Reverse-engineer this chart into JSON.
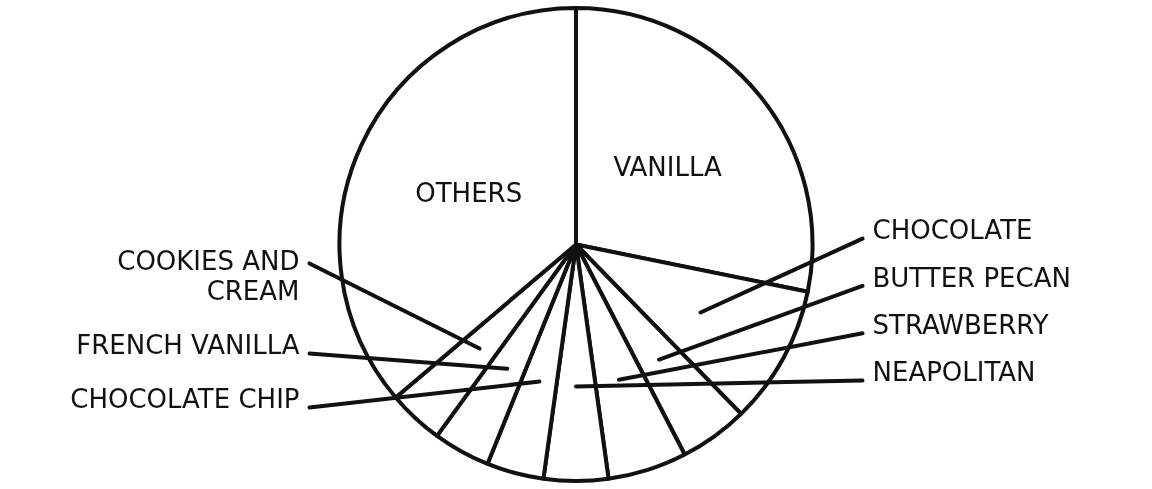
{
  "chart_data": {
    "type": "pie",
    "categories": [
      "VANILLA",
      "CHOCOLATE",
      "BUTTER PECAN",
      "STRAWBERRY",
      "NEAPOLITAN",
      "CHOCOLATE CHIP",
      "FRENCH VANILLA",
      "COOKIES AND CREAM",
      "OTHERS"
    ],
    "values": [
      28.2,
      9.5,
      4.7,
      5.4,
      4.4,
      3.9,
      3.9,
      3.8,
      36.2
    ],
    "colors": [
      "#ffffff",
      "#ffffff",
      "#ffffff",
      "#ffffff",
      "#ffffff",
      "#ffffff",
      "#ffffff",
      "#ffffff",
      "#ffffff"
    ],
    "legend": false
  }
}
